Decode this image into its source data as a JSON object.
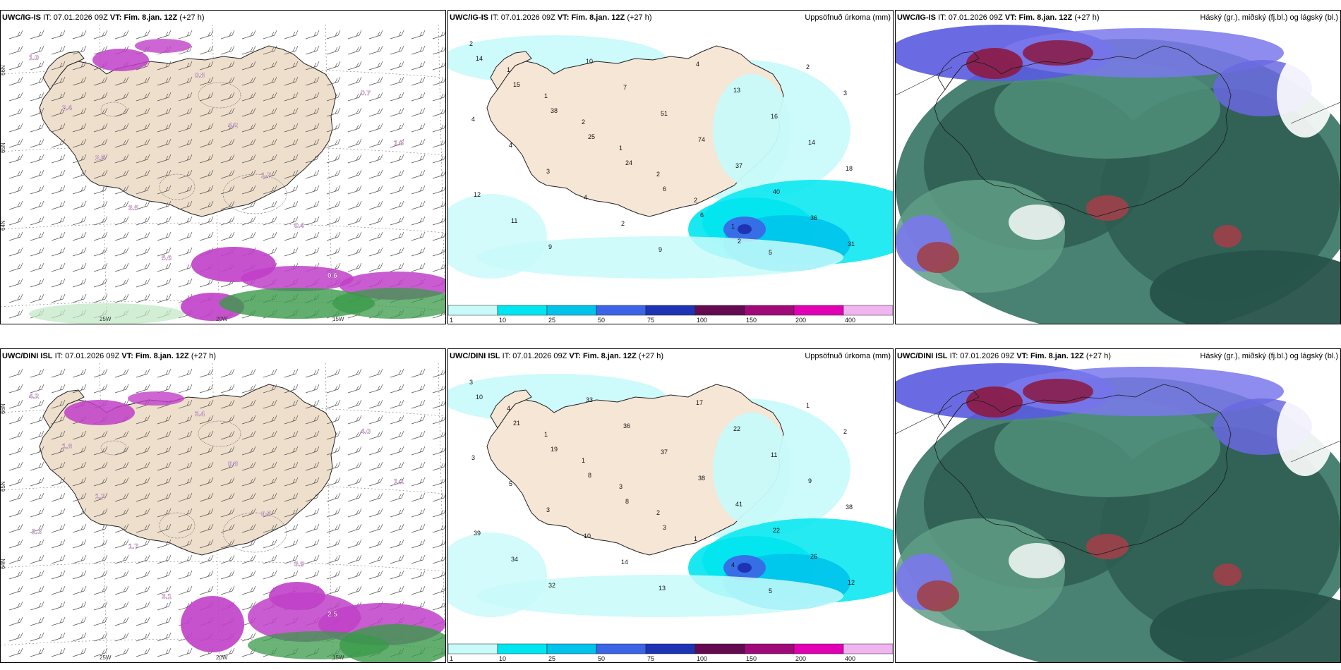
{
  "panels": [
    {
      "model": "UWC/IG-IS",
      "it_label": "IT:",
      "it": "07.01.2026 09Z",
      "vt_label": "VT:",
      "vt": "Fim. 8.jan. 12Z",
      "lead": "(+27 h)",
      "title": "",
      "kind": "wind"
    },
    {
      "model": "UWC/IG-IS",
      "it_label": "IT:",
      "it": "07.01.2026 09Z",
      "vt_label": "VT:",
      "vt": "Fim. 8.jan. 12Z",
      "lead": "(+27 h)",
      "title": "Uppsöfnuð úrkoma (mm)",
      "kind": "precip"
    },
    {
      "model": "UWC/IG-IS",
      "it_label": "IT:",
      "it": "07.01.2026 09Z",
      "vt_label": "VT:",
      "vt": "Fim. 8.jan. 12Z",
      "lead": "(+27 h)",
      "title": "Háský (gr.), miðský (fj.bl.) og lágský (bl.)",
      "kind": "cloud"
    },
    {
      "model": "UWC/DINI ISL",
      "it_label": "IT:",
      "it": "07.01.2026 09Z",
      "vt_label": "VT:",
      "vt": "Fim. 8.jan. 12Z",
      "lead": "(+27 h)",
      "title": "",
      "kind": "wind"
    },
    {
      "model": "UWC/DINI ISL",
      "it_label": "IT:",
      "it": "07.01.2026 09Z",
      "vt_label": "VT:",
      "vt": "Fim. 8.jan. 12Z",
      "lead": "(+27 h)",
      "title": "Uppsöfnuð úrkoma (mm)",
      "kind": "precip"
    },
    {
      "model": "UWC/DINI ISL",
      "it_label": "IT:",
      "it": "07.01.2026 09Z",
      "vt_label": "VT:",
      "vt": "Fim. 8.jan. 12Z",
      "lead": "(+27 h)",
      "title": "Háský (gr.), miðský (fj.bl.) og lágský (bl.)",
      "kind": "cloud"
    }
  ],
  "lat_labels": [
    "66N",
    "65N",
    "64N"
  ],
  "lon_labels": [
    "25W",
    "20W",
    "15W"
  ],
  "colorbar": {
    "ticks": [
      "1",
      "10",
      "25",
      "50",
      "75",
      "100",
      "150",
      "200",
      "400"
    ],
    "colors": [
      "#c8fafa",
      "#00e6f0",
      "#00c3eb",
      "#3c64e6",
      "#1e32b4",
      "#640a50",
      "#a00a78",
      "#e100b4",
      "#f0b4f0"
    ]
  },
  "precip_labels": {
    "top": [
      "2",
      "1",
      "1",
      "2",
      "1",
      "2",
      "2",
      "1",
      "5",
      "2",
      "3",
      "4",
      "4",
      "3",
      "4",
      "2",
      "9",
      "4",
      "13",
      "16",
      "14",
      "18",
      "12",
      "11",
      "9",
      "10",
      "7",
      "51",
      "74",
      "37",
      "40",
      "36",
      "31",
      "14",
      "15",
      "38",
      "25",
      "24",
      "6",
      "6",
      "2"
    ],
    "bottom": [
      "3",
      "4",
      "1",
      "1",
      "3",
      "2",
      "1",
      "4",
      "5",
      "1",
      "2",
      "3",
      "5",
      "3",
      "10",
      "14",
      "13",
      "17",
      "22",
      "11",
      "9",
      "38",
      "39",
      "34",
      "32",
      "33",
      "36",
      "37",
      "38",
      "41",
      "22",
      "26",
      "12",
      "10",
      "21",
      "19",
      "8",
      "8",
      "3"
    ]
  },
  "wind_labels": {
    "top": [
      "1.0",
      "2.4",
      "2.5",
      "3.5",
      "5.6",
      "0.8",
      "4.2",
      "1.7",
      "0.4",
      "0.6",
      "0.7",
      "1.3"
    ],
    "bottom": [
      "4.2",
      "1.8",
      "1.2",
      "1.7",
      "3.1",
      "3.4",
      "0.8",
      "0.5",
      "3.9",
      "2.5",
      "4.0",
      "1.1",
      "1.3"
    ]
  }
}
